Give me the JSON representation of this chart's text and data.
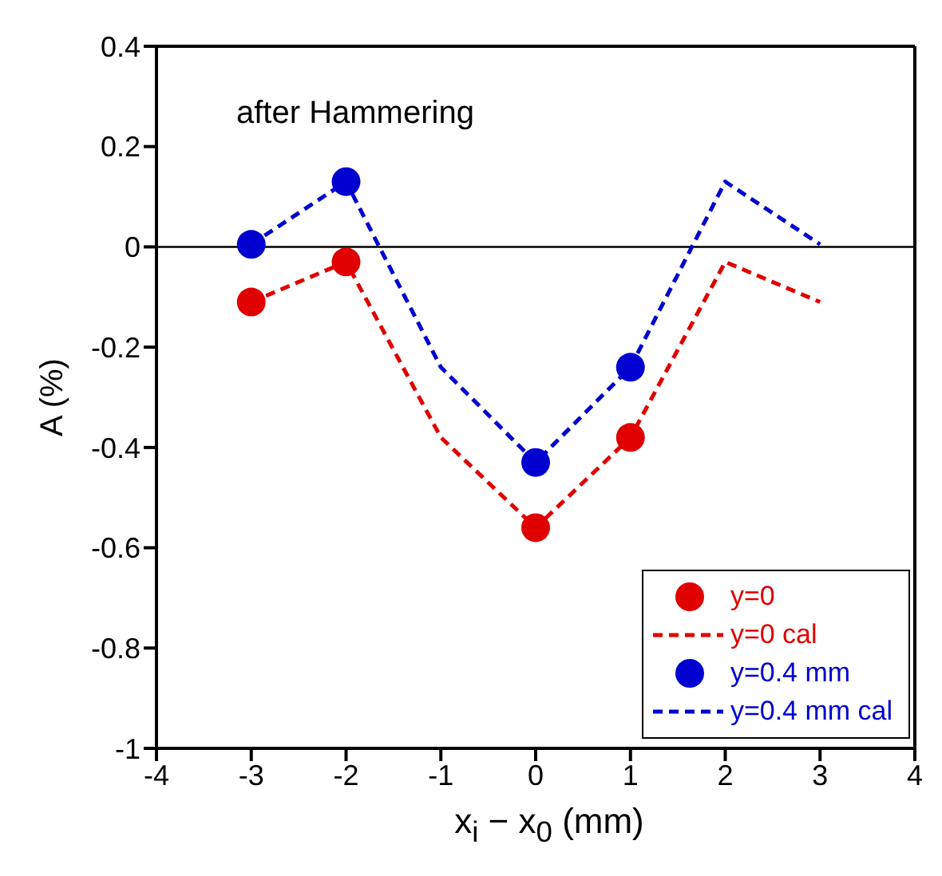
{
  "chart_data": {
    "type": "line",
    "xlabel": "x$_{i}$ − x$_{0}$ (mm)",
    "ylabel": "A (%)",
    "annotations": [
      "after Hammering"
    ],
    "xlim": [
      -4,
      4
    ],
    "xticks": [
      -4,
      -3,
      -2,
      -1,
      0,
      1,
      2,
      3,
      4
    ],
    "ylim": [
      -1,
      0.4
    ],
    "yticks": [
      -1,
      -0.8,
      -0.6,
      -0.4,
      -0.2,
      0,
      0.2,
      0.4
    ],
    "legend": "bottom right",
    "ref_lines": [
      {
        "axis": "y",
        "value": 0,
        "color": "#000000",
        "line_style": "solid"
      }
    ],
    "series": [
      {
        "name": "y=0",
        "type": "scatter",
        "color": "#e00000",
        "marker": "circle",
        "x": [
          -3,
          -2,
          0,
          1
        ],
        "values": [
          -0.11,
          -0.03,
          -0.56,
          -0.38
        ]
      },
      {
        "name": "y=0 cal",
        "color": "#e00000",
        "marker": "none",
        "line_style": "dashed",
        "x": [
          -3,
          -2,
          -1,
          0,
          1,
          2,
          3
        ],
        "values": [
          -0.11,
          -0.03,
          -0.38,
          -0.56,
          -0.38,
          -0.03,
          -0.11
        ]
      },
      {
        "name": "y=0.4 mm",
        "type": "scatter",
        "color": "#0000d0",
        "marker": "circle",
        "x": [
          -3,
          -2,
          0,
          1
        ],
        "values": [
          0.005,
          0.13,
          -0.43,
          -0.24
        ]
      },
      {
        "name": "y=0.4 mm cal",
        "color": "#0000d0",
        "marker": "none",
        "line_style": "dashed",
        "x": [
          -3,
          -2,
          -1,
          0,
          1,
          2,
          3
        ],
        "values": [
          0.005,
          0.13,
          -0.24,
          -0.43,
          -0.24,
          0.13,
          0.005
        ]
      }
    ]
  }
}
